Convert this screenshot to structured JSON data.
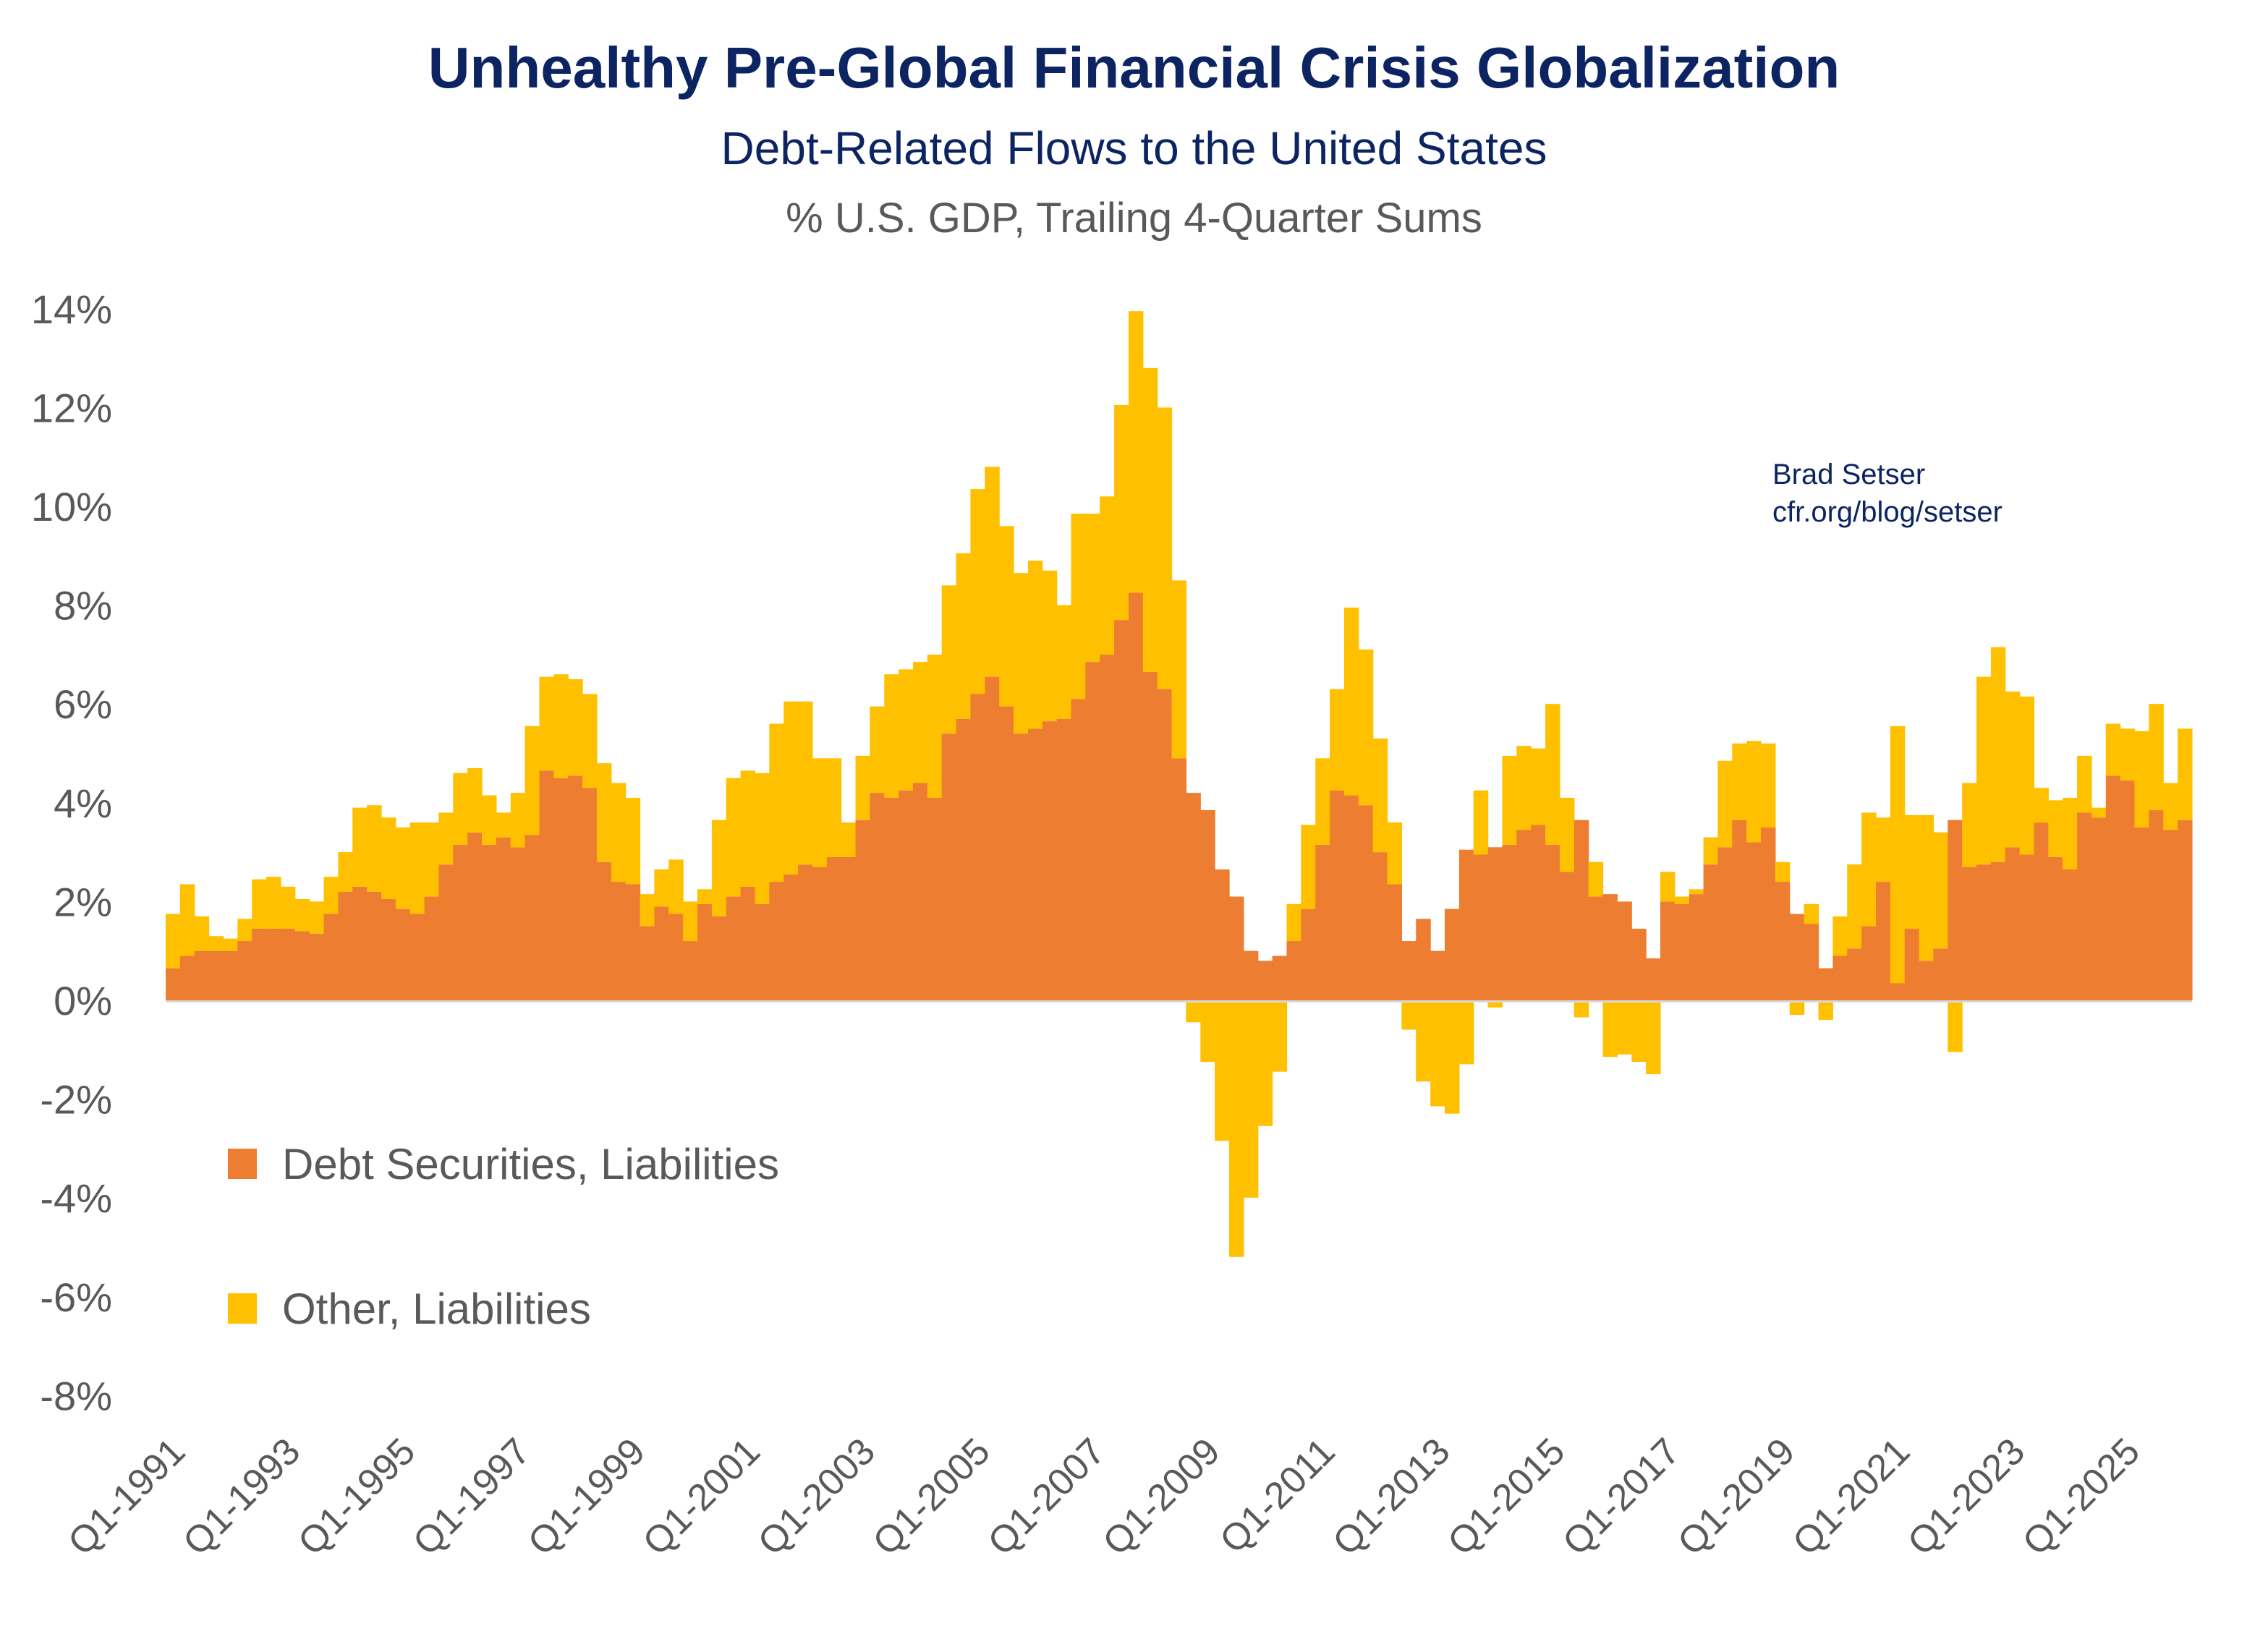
{
  "chart_data": {
    "type": "bar",
    "stacked": true,
    "title": "Unhealthy Pre-Global Financial Crisis Globalization",
    "subtitle": "Debt-Related Flows to the United States",
    "unit_label": "% U.S. GDP, Trailing 4-Quarter Sums",
    "credit": [
      "Brad Setser",
      "cfr.org/blog/setser"
    ],
    "xlabel": "",
    "ylabel": "",
    "ylim": [
      -8,
      14
    ],
    "yticks": [
      14,
      12,
      10,
      8,
      6,
      4,
      2,
      0,
      -2,
      -4,
      -6,
      -8
    ],
    "ytick_labels": [
      "14%",
      "12%",
      "10%",
      "8%",
      "6%",
      "4%",
      "2%",
      "0%",
      "-2%",
      "-4%",
      "-6%",
      "-8%"
    ],
    "xtick_labels": [
      "Q1-1991",
      "Q1-1993",
      "Q1-1995",
      "Q1-1997",
      "Q1-1999",
      "Q1-2001",
      "Q1-2003",
      "Q1-2005",
      "Q1-2007",
      "Q1-2009",
      "Q1-2011",
      "Q1-2013",
      "Q1-2015",
      "Q1-2017",
      "Q1-2019",
      "Q1-2021",
      "Q1-2023",
      "Q1-2025"
    ],
    "x_start": "Q1-1991",
    "x_end": "Q2-2025",
    "grid": false,
    "legend_position": "lower-left",
    "colors": {
      "debt": "#ED7D31",
      "other": "#FFC000",
      "text": "#595959",
      "title": "#0D2463",
      "zero_line": "#D9D9D9"
    },
    "series": [
      {
        "name": "Debt Securities, Liabilities",
        "color": "#ED7D31",
        "values": [
          0.65,
          0.9,
          1.0,
          1.0,
          1.0,
          1.2,
          1.45,
          1.45,
          1.45,
          1.4,
          1.35,
          1.75,
          2.2,
          2.3,
          2.2,
          2.05,
          1.85,
          1.75,
          2.1,
          2.75,
          3.15,
          3.4,
          3.15,
          3.3,
          3.1,
          3.35,
          4.65,
          4.5,
          4.55,
          4.3,
          2.8,
          2.4,
          2.35,
          1.5,
          1.9,
          1.75,
          1.2,
          1.95,
          1.7,
          2.1,
          2.3,
          1.95,
          2.4,
          2.55,
          2.75,
          2.7,
          2.9,
          2.9,
          3.65,
          4.2,
          4.1,
          4.25,
          4.4,
          4.1,
          5.4,
          5.7,
          6.2,
          6.55,
          5.95,
          5.4,
          5.5,
          5.65,
          5.7,
          6.1,
          6.85,
          7.0,
          7.7,
          8.25,
          6.65,
          6.3,
          4.9,
          4.2,
          3.85,
          2.65,
          2.1,
          1.0,
          0.8,
          0.9,
          1.2,
          1.85,
          3.15,
          4.25,
          4.15,
          3.95,
          3.0,
          2.35,
          1.2,
          1.65,
          1.0,
          1.85,
          3.05,
          2.95,
          3.1,
          3.15,
          3.45,
          3.55,
          3.15,
          2.6,
          3.65,
          2.1,
          2.15,
          2.0,
          1.45,
          0.85,
          2.0,
          1.95,
          2.15,
          2.75,
          3.1,
          3.65,
          3.2,
          3.5,
          2.4,
          1.75,
          1.55,
          0.65,
          0.9,
          1.05,
          1.5,
          2.4,
          0.35,
          1.45,
          0.8,
          1.05,
          3.65,
          2.7,
          2.75,
          2.8,
          3.1,
          2.95,
          3.6,
          2.9,
          2.65,
          3.8,
          3.7,
          4.55,
          4.45,
          3.5,
          3.85,
          3.45,
          3.65
        ]
      },
      {
        "name": "Other, Liabilities",
        "color": "#FFC000",
        "values": [
          1.1,
          1.45,
          0.7,
          0.3,
          0.25,
          0.45,
          1.0,
          1.05,
          0.85,
          0.65,
          0.65,
          0.75,
          0.8,
          1.6,
          1.75,
          1.65,
          1.65,
          1.85,
          1.5,
          1.05,
          1.45,
          1.3,
          1.0,
          0.5,
          1.1,
          2.2,
          1.9,
          2.1,
          1.95,
          1.9,
          2.0,
          2.0,
          1.75,
          0.65,
          0.75,
          1.1,
          0.8,
          0.3,
          1.95,
          2.4,
          2.35,
          2.65,
          3.2,
          3.5,
          3.3,
          2.2,
          2.0,
          0.7,
          1.3,
          1.75,
          2.5,
          2.45,
          2.45,
          2.9,
          3.0,
          3.35,
          4.15,
          4.25,
          3.65,
          3.25,
          3.4,
          3.05,
          2.3,
          3.75,
          3.0,
          3.2,
          4.35,
          5.7,
          6.15,
          5.7,
          3.6,
          -0.4,
          -1.2,
          -2.8,
          -5.15,
          -3.95,
          -2.5,
          -1.4,
          0.75,
          1.7,
          1.75,
          2.05,
          3.8,
          3.15,
          2.3,
          1.25,
          -0.55,
          -1.6,
          -2.1,
          -2.25,
          -1.25,
          1.3,
          -0.1,
          1.8,
          1.7,
          1.55,
          2.85,
          1.5,
          -0.3,
          0.7,
          -1.1,
          -1.05,
          -1.2,
          -1.45,
          0.6,
          0.15,
          0.1,
          0.55,
          1.75,
          1.55,
          2.05,
          1.7,
          0.4,
          -0.25,
          0.4,
          -0.35,
          0.8,
          1.7,
          2.3,
          1.3,
          5.2,
          2.3,
          2.95,
          2.35,
          -1.0,
          1.7,
          3.8,
          4.35,
          3.15,
          3.2,
          0.7,
          1.15,
          1.45,
          1.15,
          0.2,
          1.05,
          1.05,
          1.95,
          2.15,
          0.95,
          1.85
        ]
      }
    ]
  }
}
